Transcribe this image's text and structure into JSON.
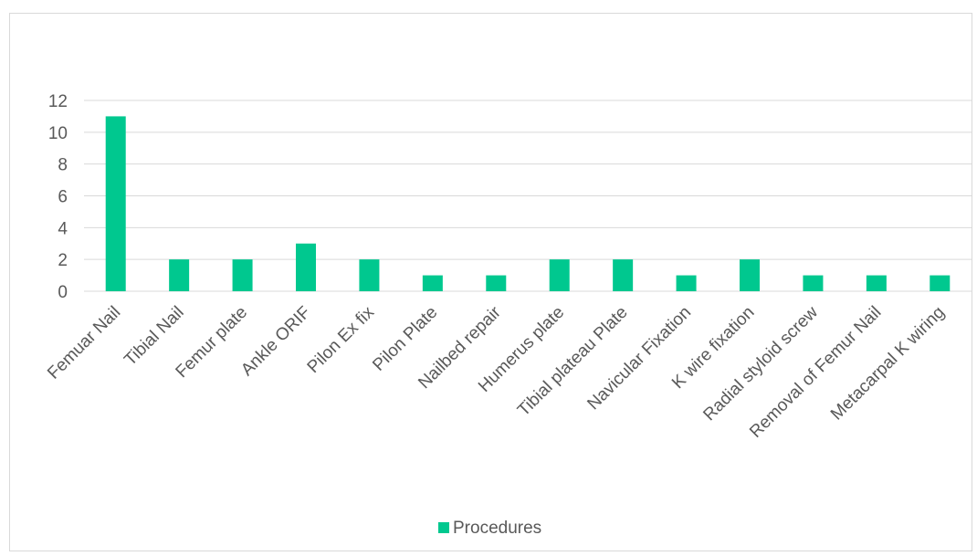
{
  "chart_data": {
    "type": "bar",
    "categories": [
      "Femuar  Nail",
      "Tibial Nail",
      "Femur plate",
      "Ankle ORIF",
      "Pilon Ex fix",
      "Pilon Plate",
      "Nailbed repair",
      "Humerus plate",
      "Tibial plateau Plate",
      "Navicular Fixation",
      "K wire fixation",
      "Radial styloid screw",
      "Removal of Femur Nail",
      "Metacarpal K wiring"
    ],
    "series": [
      {
        "name": "Procedures",
        "values": [
          11,
          2,
          2,
          3,
          2,
          1,
          1,
          2,
          2,
          1,
          2,
          1,
          1,
          1
        ]
      }
    ],
    "ylim": [
      0,
      12
    ],
    "yticks": [
      "0",
      "2",
      "4",
      "6",
      "8",
      "10",
      "12"
    ],
    "grid": true,
    "legend_position": "bottom",
    "bar_color": "#00c88f",
    "grid_color": "#d9d9d9"
  }
}
